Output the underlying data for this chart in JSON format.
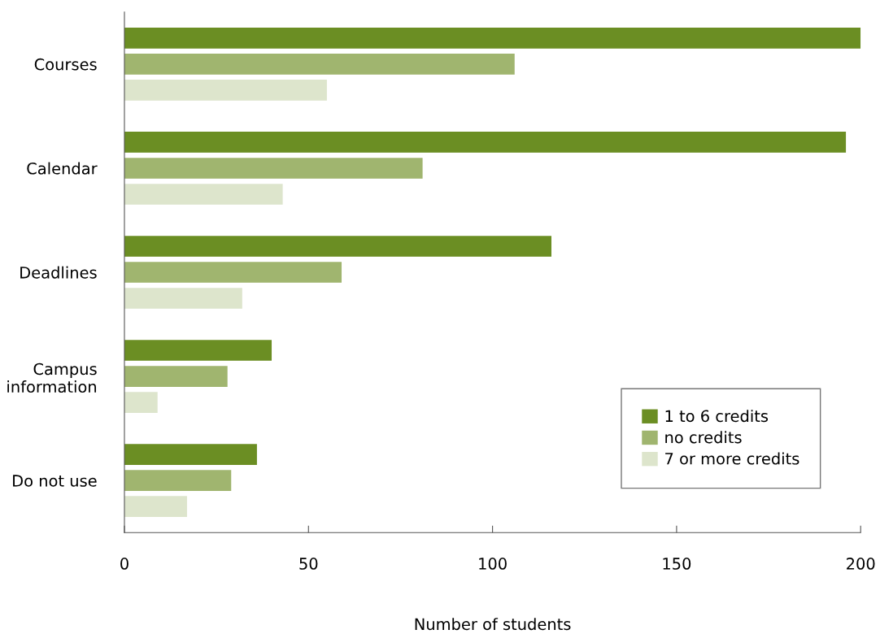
{
  "chart_data": {
    "type": "bar",
    "orientation": "horizontal",
    "xlabel": "Number of students",
    "categories": [
      "Courses",
      "Calendar",
      "Deadlines",
      "Campus\ninformation",
      "Do not use"
    ],
    "series": [
      {
        "name": "1 to 6 credits",
        "color": "#6b8e23",
        "values": [
          200,
          196,
          116,
          40,
          36
        ]
      },
      {
        "name": "no credits",
        "color": "#a0b56f",
        "values": [
          106,
          81,
          59,
          28,
          29
        ]
      },
      {
        "name": "7 or more credits",
        "color": "#dde5cc",
        "values": [
          55,
          43,
          32,
          9,
          17
        ]
      }
    ],
    "xlim": [
      0,
      200
    ],
    "xticks": [
      0,
      50,
      100,
      150,
      200
    ],
    "grid": false,
    "legend": "bottom right"
  }
}
